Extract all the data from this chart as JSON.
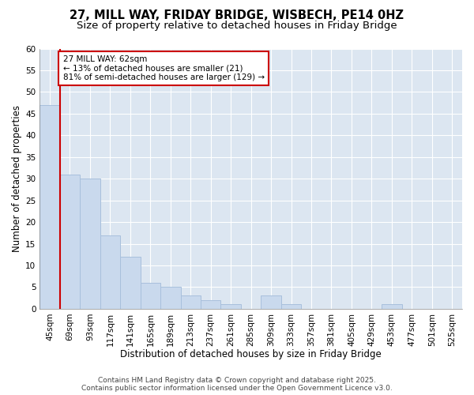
{
  "title_line1": "27, MILL WAY, FRIDAY BRIDGE, WISBECH, PE14 0HZ",
  "title_line2": "Size of property relative to detached houses in Friday Bridge",
  "xlabel": "Distribution of detached houses by size in Friday Bridge",
  "ylabel": "Number of detached properties",
  "categories": [
    "45sqm",
    "69sqm",
    "93sqm",
    "117sqm",
    "141sqm",
    "165sqm",
    "189sqm",
    "213sqm",
    "237sqm",
    "261sqm",
    "285sqm",
    "309sqm",
    "333sqm",
    "357sqm",
    "381sqm",
    "405sqm",
    "429sqm",
    "453sqm",
    "477sqm",
    "501sqm",
    "525sqm"
  ],
  "values": [
    47,
    31,
    30,
    17,
    12,
    6,
    5,
    3,
    2,
    1,
    0,
    3,
    1,
    0,
    0,
    0,
    0,
    1,
    0,
    0,
    0
  ],
  "bar_color": "#c9d9ed",
  "bar_edge_color": "#a8c0dc",
  "vline_x": 0.5,
  "vline_color": "#cc0000",
  "annotation_text": "27 MILL WAY: 62sqm\n← 13% of detached houses are smaller (21)\n81% of semi-detached houses are larger (129) →",
  "annotation_box_facecolor": "#ffffff",
  "annotation_box_edgecolor": "#cc0000",
  "ylim": [
    0,
    60
  ],
  "yticks": [
    0,
    5,
    10,
    15,
    20,
    25,
    30,
    35,
    40,
    45,
    50,
    55,
    60
  ],
  "grid_color": "#ffffff",
  "bg_color": "#dce6f1",
  "footer_text": "Contains HM Land Registry data © Crown copyright and database right 2025.\nContains public sector information licensed under the Open Government Licence v3.0.",
  "title_fontsize": 10.5,
  "subtitle_fontsize": 9.5,
  "axis_label_fontsize": 8.5,
  "tick_fontsize": 7.5,
  "annotation_fontsize": 7.5,
  "footer_fontsize": 6.5
}
